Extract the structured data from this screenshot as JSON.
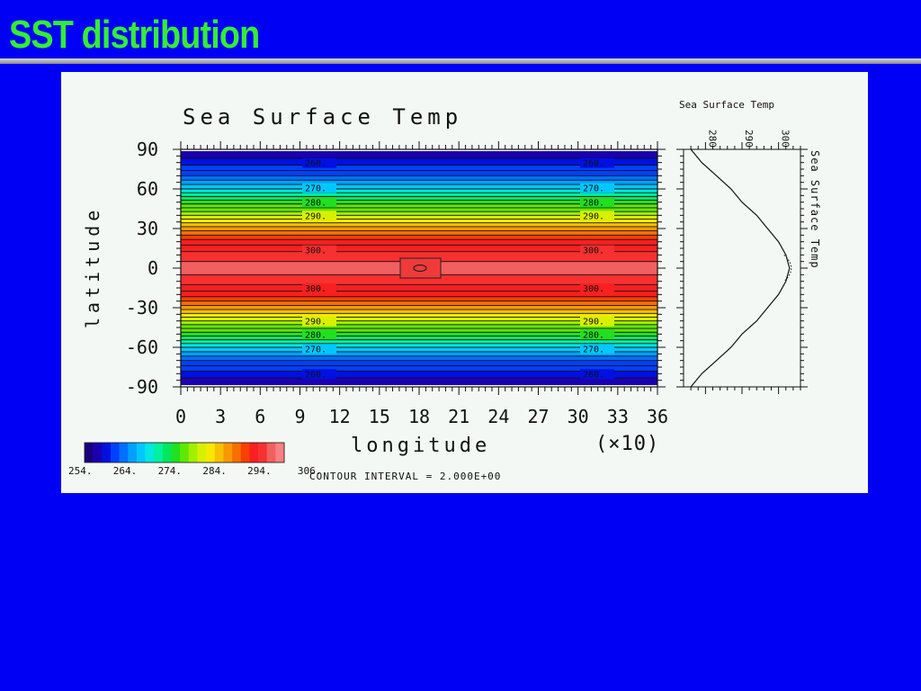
{
  "slide": {
    "title": "SST distribution"
  },
  "chart_data": [
    {
      "type": "heatmap",
      "title": "Sea Surface Temp",
      "xlabel": "longitude",
      "ylabel": "latitude",
      "x_scale_note": "(×10)",
      "xlim": [
        0,
        36
      ],
      "ylim": [
        -90,
        90
      ],
      "x_ticks": [
        0,
        3,
        6,
        9,
        12,
        15,
        18,
        21,
        24,
        27,
        30,
        33,
        36
      ],
      "y_ticks": [
        90,
        60,
        30,
        0,
        -30,
        -60,
        -90
      ],
      "colorbar": {
        "min": 254,
        "max": 306,
        "labels": [
          "254.",
          "264.",
          "274.",
          "284.",
          "294.",
          "306."
        ],
        "colors": [
          "#1a0080",
          "#1a00b0",
          "#0010e0",
          "#0040ff",
          "#0070ff",
          "#00a0ff",
          "#00c8ff",
          "#00e8e0",
          "#00f0a0",
          "#00e860",
          "#20e020",
          "#60e800",
          "#a0f000",
          "#d8f000",
          "#f8e800",
          "#f8c000",
          "#f89800",
          "#f87000",
          "#f84000",
          "#f82020",
          "#f83030",
          "#f06060",
          "#f88080"
        ]
      },
      "contour_labels": [
        "260.",
        "270.",
        "280.",
        "290.",
        "300.",
        "300.",
        "290.",
        "280.",
        "270.",
        "260."
      ],
      "center_contour_label": "0",
      "contour_interval": "CONTOUR INTERVAL = 2.000E+00",
      "field": {
        "description_levels": "zonally symmetric, warmest near equator",
        "lat": [
          -90,
          -80,
          -70,
          -60,
          -50,
          -40,
          -30,
          -20,
          -10,
          0,
          10,
          20,
          30,
          40,
          50,
          60,
          70,
          80,
          90
        ],
        "sst": [
          256,
          259,
          264,
          270,
          277,
          284,
          291,
          297,
          301,
          303,
          301,
          297,
          291,
          284,
          277,
          270,
          264,
          259,
          256
        ]
      }
    },
    {
      "type": "line",
      "title": "Sea Surface Temp",
      "ylabel": "Sea Surface Temp",
      "x_ticks": [
        280,
        290,
        300
      ],
      "xlim": [
        274,
        306
      ],
      "ylim": [
        -90,
        90
      ],
      "series": [
        {
          "lat": [
            -90,
            -80,
            -70,
            -60,
            -50,
            -40,
            -30,
            -20,
            -10,
            0,
            10,
            20,
            30,
            40,
            50,
            60,
            70,
            80,
            90
          ],
          "sst": [
            276,
            279,
            283,
            287,
            290,
            294,
            297,
            300,
            302,
            303,
            302,
            300,
            297,
            294,
            290,
            287,
            283,
            279,
            276
          ]
        }
      ]
    }
  ]
}
